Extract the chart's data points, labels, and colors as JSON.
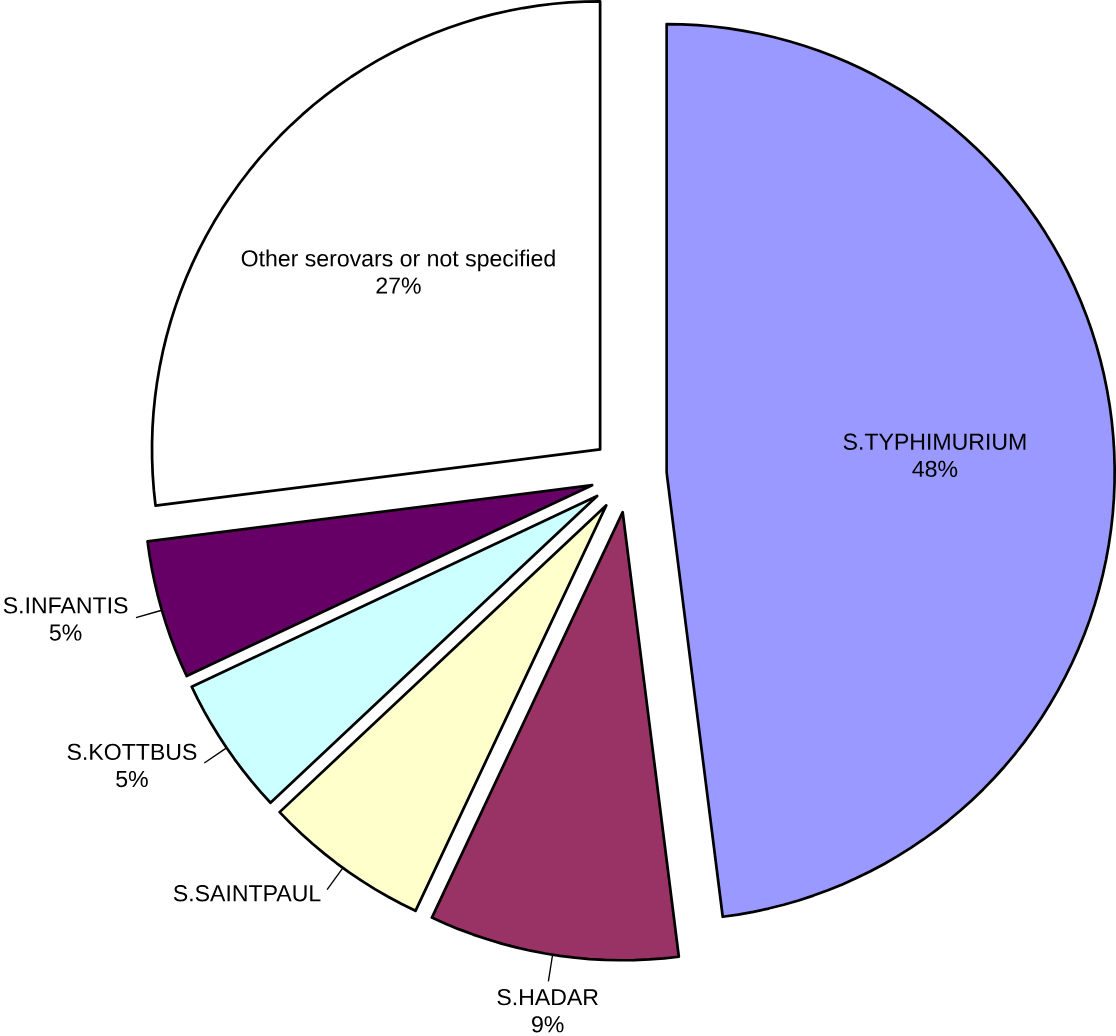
{
  "chart_data": {
    "type": "pie",
    "categories": [
      "S.TYPHIMURIUM",
      "S.HADAR",
      "S.SAINTPAUL",
      "S.KOTTBUS",
      "S.INFANTIS",
      "Other serovars or not specified"
    ],
    "values": [
      48,
      9,
      6,
      5,
      5,
      27
    ],
    "colors": [
      "#9999ff",
      "#993366",
      "#ffffcc",
      "#ccffff",
      "#660066",
      "#ffffff"
    ],
    "value_labels": [
      "48%",
      "9%",
      null,
      "5%",
      "5%",
      "27%"
    ]
  }
}
